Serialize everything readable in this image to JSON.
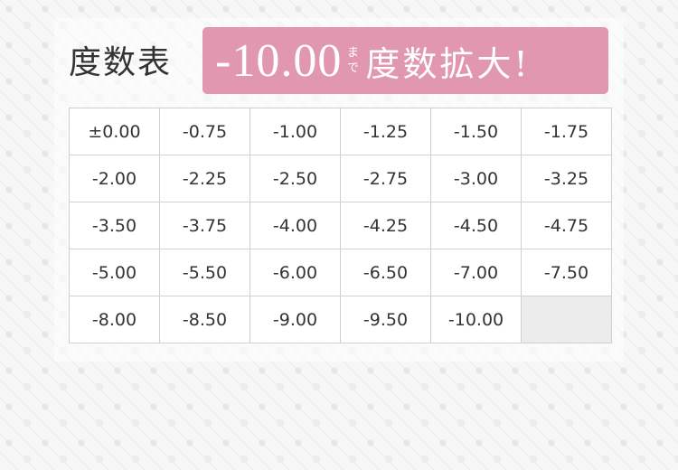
{
  "header": {
    "title": "度数表",
    "banner": {
      "value": "-10.00",
      "made": "まで",
      "text": "度数拡大!"
    }
  },
  "colors": {
    "accent": "#e197b0"
  },
  "table": {
    "rows": [
      [
        "±0.00",
        "-0.75",
        "-1.00",
        "-1.25",
        "-1.50",
        "-1.75"
      ],
      [
        "-2.00",
        "-2.25",
        "-2.50",
        "-2.75",
        "-3.00",
        "-3.25"
      ],
      [
        "-3.50",
        "-3.75",
        "-4.00",
        "-4.25",
        "-4.50",
        "-4.75"
      ],
      [
        "-5.00",
        "-5.50",
        "-6.00",
        "-6.50",
        "-7.00",
        "-7.50"
      ],
      [
        "-8.00",
        "-8.50",
        "-9.00",
        "-9.50",
        "-10.00",
        ""
      ]
    ]
  }
}
